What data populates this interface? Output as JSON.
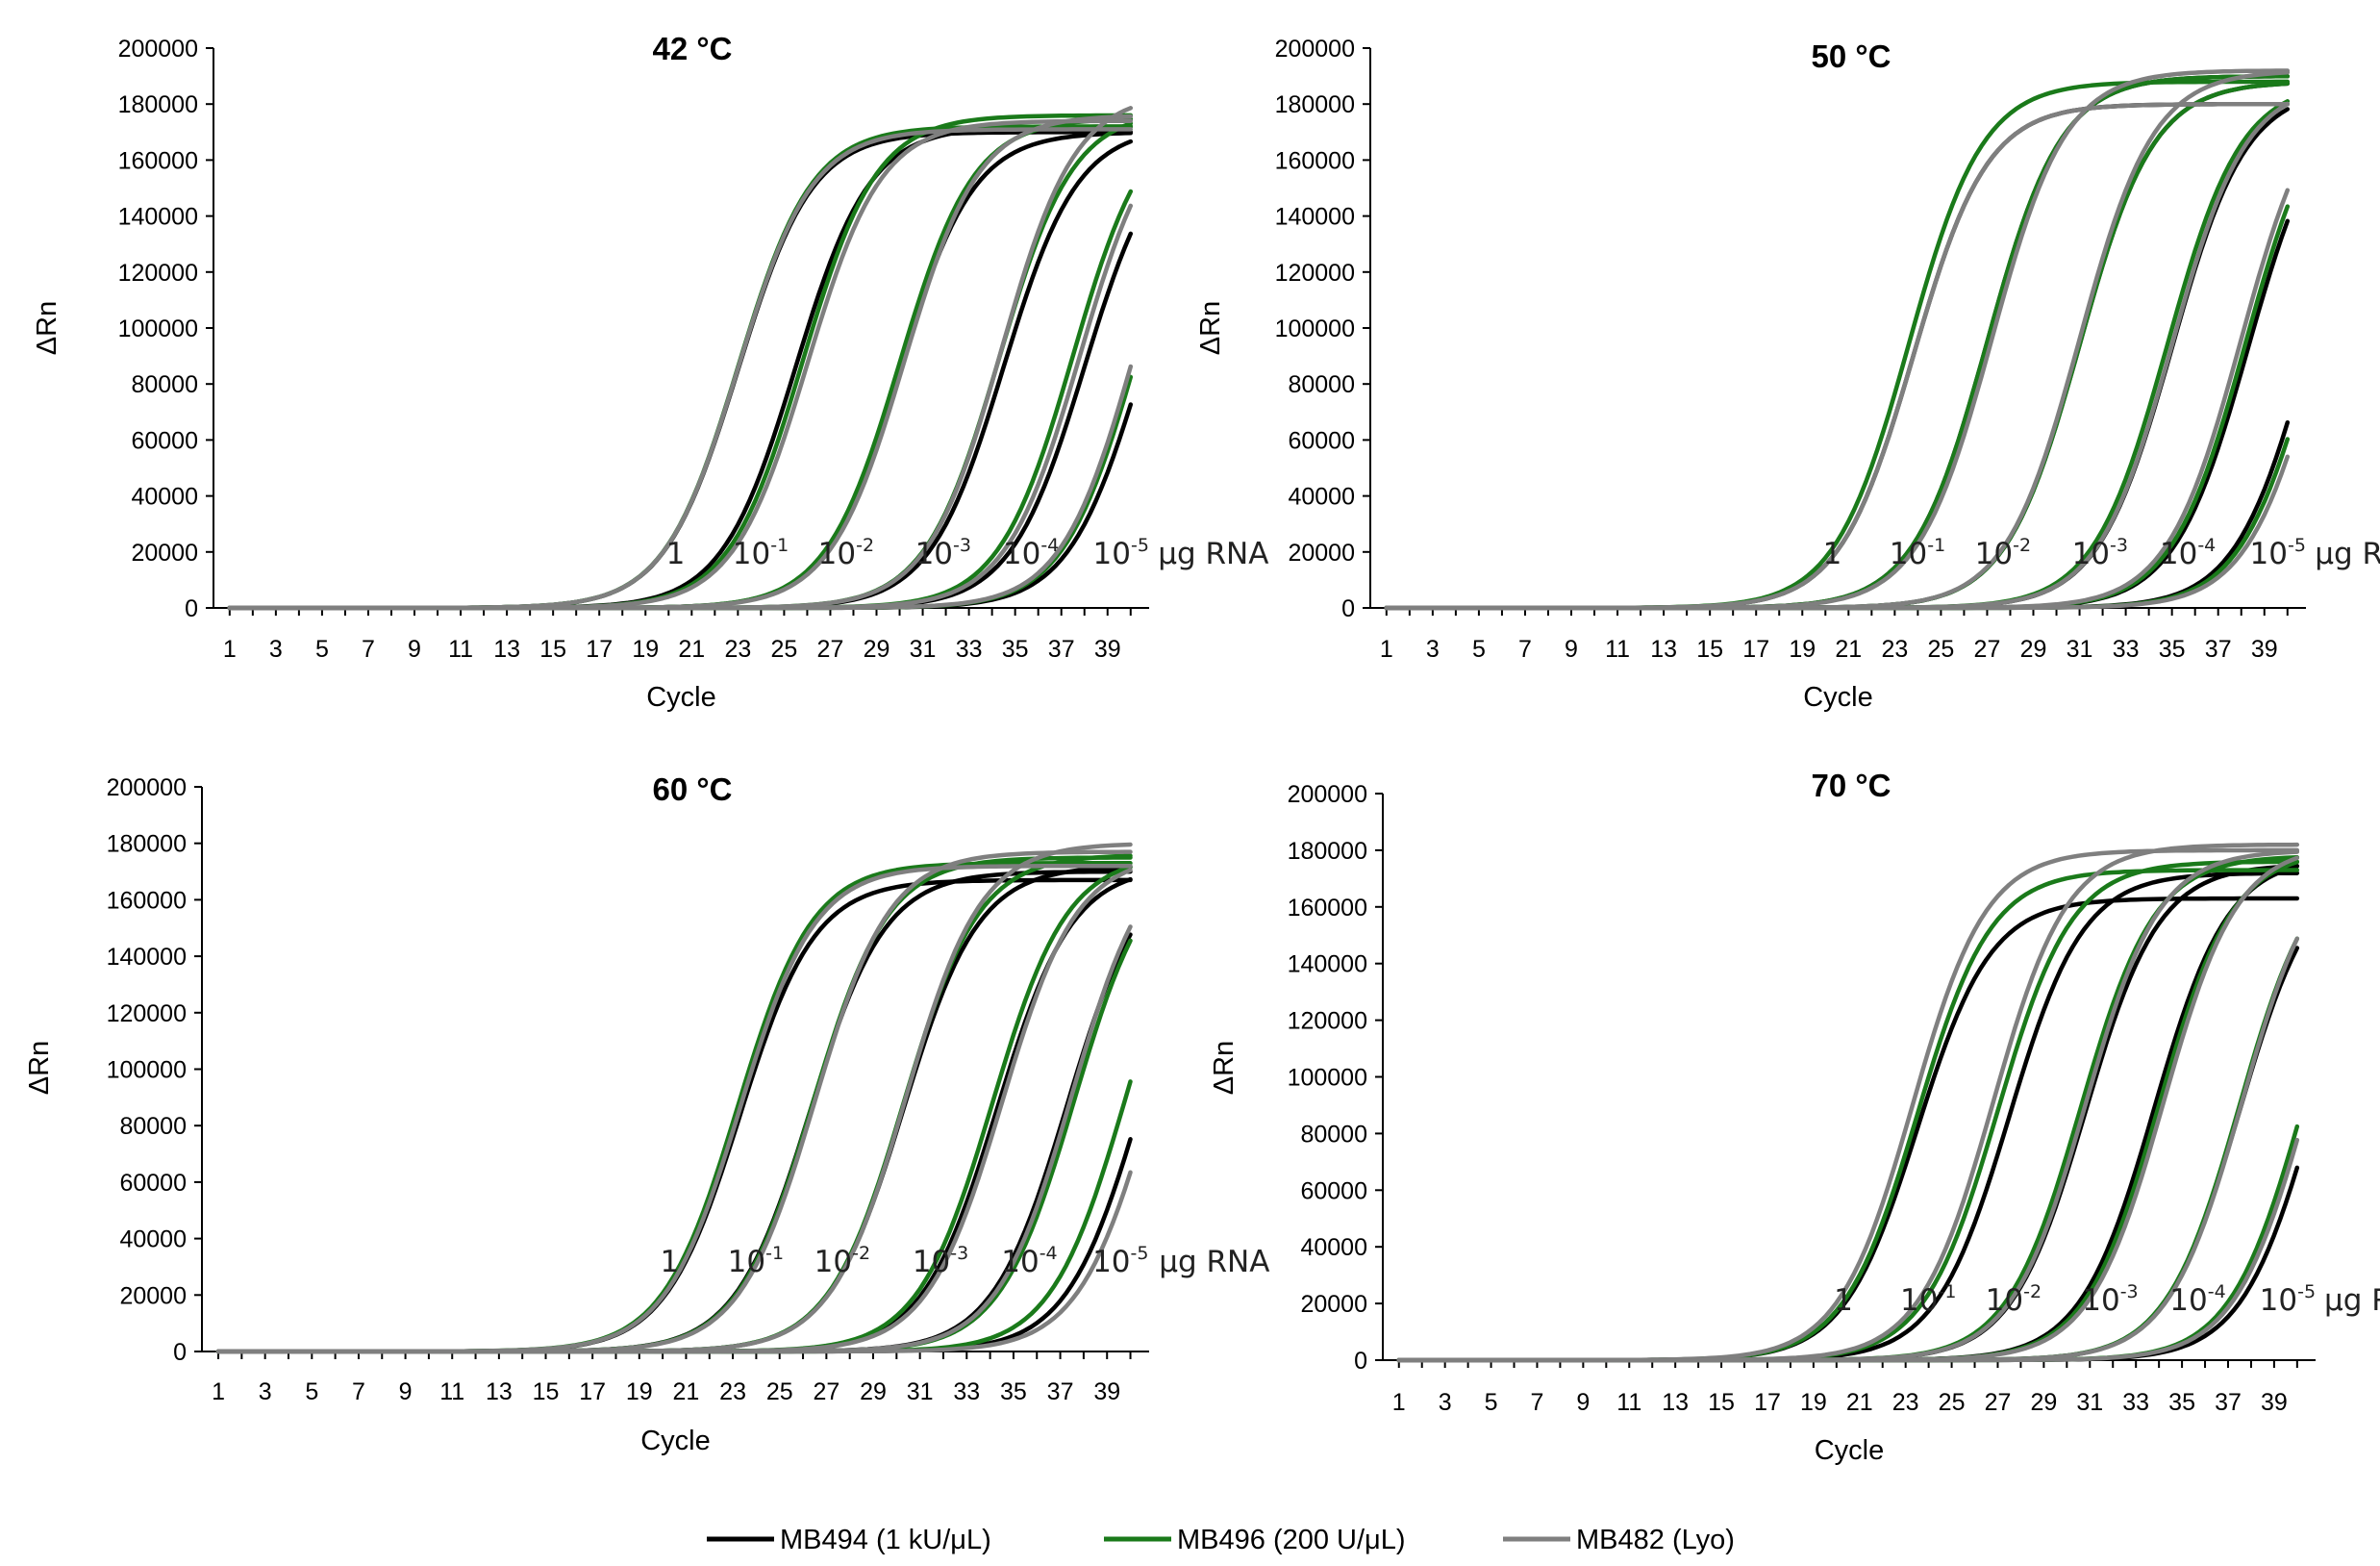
{
  "chart_data": [
    {
      "type": "line",
      "title": "42 °C",
      "xlabel": "Cycle",
      "ylabel": "ΔRn",
      "xlim": [
        1,
        40
      ],
      "ylim": [
        0,
        200000
      ],
      "x_ticks": [
        "1",
        "3",
        "5",
        "7",
        "9",
        "11",
        "13",
        "15",
        "17",
        "19",
        "21",
        "23",
        "25",
        "27",
        "29",
        "31",
        "33",
        "35",
        "37",
        "39"
      ],
      "y_ticks": [
        "0",
        "20000",
        "40000",
        "60000",
        "80000",
        "100000",
        "120000",
        "140000",
        "160000",
        "180000",
        "200000"
      ],
      "annotations": [
        "1",
        "10",
        "-1",
        "10",
        "-2",
        "10",
        "-3",
        "10",
        "-4",
        "10",
        "-5",
        "μg RNA"
      ],
      "series": [
        {
          "name": "MB494 (1 kU/μL)",
          "color": "#000000",
          "curves": [
            {
              "midpoint": 23.0,
              "plateau": 170000,
              "slope": 1.6
            },
            {
              "midpoint": 25.5,
              "plateau": 172000,
              "slope": 1.6
            },
            {
              "midpoint": 30.0,
              "plateau": 170000,
              "slope": 1.6
            },
            {
              "midpoint": 34.5,
              "plateau": 172000,
              "slope": 1.6
            },
            {
              "midpoint": 38.0,
              "plateau": 172000,
              "slope": 1.6
            },
            {
              "midpoint": 40.5,
              "plateau": 172000,
              "slope": 1.6
            }
          ]
        },
        {
          "name": "MB496 (200 U/μL)",
          "color": "#1a7a1a",
          "curves": [
            {
              "midpoint": 23.0,
              "plateau": 172000,
              "slope": 1.6
            },
            {
              "midpoint": 25.8,
              "plateau": 176000,
              "slope": 1.6
            },
            {
              "midpoint": 30.0,
              "plateau": 175000,
              "slope": 1.6
            },
            {
              "midpoint": 34.3,
              "plateau": 178000,
              "slope": 1.6
            },
            {
              "midpoint": 37.5,
              "plateau": 180000,
              "slope": 1.6
            },
            {
              "midpoint": 40.3,
              "plateau": 182000,
              "slope": 1.6
            }
          ]
        },
        {
          "name": "MB482 (Lyo)",
          "color": "#7f7f7f",
          "curves": [
            {
              "midpoint": 23.0,
              "plateau": 171000,
              "slope": 1.6
            },
            {
              "midpoint": 26.0,
              "plateau": 174000,
              "slope": 1.6
            },
            {
              "midpoint": 30.2,
              "plateau": 176000,
              "slope": 1.6
            },
            {
              "midpoint": 34.4,
              "plateau": 184000,
              "slope": 1.6
            },
            {
              "midpoint": 37.8,
              "plateau": 180000,
              "slope": 1.6
            },
            {
              "midpoint": 40.2,
              "plateau": 184000,
              "slope": 1.6
            }
          ]
        }
      ]
    },
    {
      "type": "line",
      "title": "50 °C",
      "xlabel": "Cycle",
      "ylabel": "ΔRn",
      "xlim": [
        1,
        40
      ],
      "ylim": [
        0,
        200000
      ],
      "x_ticks": [
        "1",
        "3",
        "5",
        "7",
        "9",
        "11",
        "13",
        "15",
        "17",
        "19",
        "21",
        "23",
        "25",
        "27",
        "29",
        "31",
        "33",
        "35",
        "37",
        "39"
      ],
      "y_ticks": [
        "0",
        "20000",
        "40000",
        "60000",
        "80000",
        "100000",
        "120000",
        "140000",
        "160000",
        "180000",
        "200000"
      ],
      "annotations": [
        "1",
        "10",
        "-1",
        "10",
        "-2",
        "10",
        "-3",
        "10",
        "-4",
        "10",
        "-5",
        "μg RNA"
      ],
      "series": [
        {
          "name": "MB494 (1 kU/μL)",
          "color": "#000000",
          "curves": [
            {
              "midpoint": 23.8,
              "plateau": 180000,
              "slope": 1.6
            },
            {
              "midpoint": 27.0,
              "plateau": 190000,
              "slope": 1.6
            },
            {
              "midpoint": 31.0,
              "plateau": 188000,
              "slope": 1.6
            },
            {
              "midpoint": 35.0,
              "plateau": 186000,
              "slope": 1.6
            },
            {
              "midpoint": 38.3,
              "plateau": 186000,
              "slope": 1.6
            },
            {
              "midpoint": 41.0,
              "plateau": 190000,
              "slope": 1.6
            }
          ]
        },
        {
          "name": "MB496 (200 U/μL)",
          "color": "#1a7a1a",
          "curves": [
            {
              "midpoint": 23.6,
              "plateau": 188000,
              "slope": 1.6
            },
            {
              "midpoint": 27.0,
              "plateau": 190000,
              "slope": 1.6
            },
            {
              "midpoint": 31.0,
              "plateau": 188000,
              "slope": 1.6
            },
            {
              "midpoint": 34.8,
              "plateau": 188000,
              "slope": 1.6
            },
            {
              "midpoint": 38.2,
              "plateau": 190000,
              "slope": 1.6
            },
            {
              "midpoint": 41.2,
              "plateau": 188000,
              "slope": 1.6
            }
          ]
        },
        {
          "name": "MB482 (Lyo)",
          "color": "#7f7f7f",
          "curves": [
            {
              "midpoint": 23.8,
              "plateau": 180000,
              "slope": 1.6
            },
            {
              "midpoint": 27.2,
              "plateau": 192000,
              "slope": 1.6
            },
            {
              "midpoint": 31.0,
              "plateau": 192000,
              "slope": 1.6
            },
            {
              "midpoint": 35.0,
              "plateau": 188000,
              "slope": 1.6
            },
            {
              "midpoint": 38.0,
              "plateau": 192000,
              "slope": 1.6
            },
            {
              "midpoint": 41.5,
              "plateau": 192000,
              "slope": 1.6
            }
          ]
        }
      ]
    },
    {
      "type": "line",
      "title": "60 °C",
      "xlabel": "Cycle",
      "ylabel": "ΔRn",
      "xlim": [
        1,
        40
      ],
      "ylim": [
        0,
        200000
      ],
      "x_ticks": [
        "1",
        "3",
        "5",
        "7",
        "9",
        "11",
        "13",
        "15",
        "17",
        "19",
        "21",
        "23",
        "25",
        "27",
        "29",
        "31",
        "33",
        "35",
        "37",
        "39"
      ],
      "y_ticks": [
        "0",
        "20000",
        "40000",
        "60000",
        "80000",
        "100000",
        "120000",
        "140000",
        "160000",
        "180000",
        "200000"
      ],
      "annotations": [
        "1",
        "10",
        "-1",
        "10",
        "-2",
        "10",
        "-3",
        "10",
        "-4",
        "10",
        "-5",
        "μg RNA"
      ],
      "series": [
        {
          "name": "MB494 (1 kU/μL)",
          "color": "#000000",
          "curves": [
            {
              "midpoint": 23.3,
              "plateau": 167000,
              "slope": 1.6
            },
            {
              "midpoint": 26.3,
              "plateau": 170000,
              "slope": 1.6
            },
            {
              "midpoint": 30.3,
              "plateau": 172000,
              "slope": 1.6
            },
            {
              "midpoint": 34.3,
              "plateau": 172000,
              "slope": 1.6
            },
            {
              "midpoint": 37.3,
              "plateau": 175000,
              "slope": 1.6
            },
            {
              "midpoint": 40.5,
              "plateau": 178000,
              "slope": 1.6
            }
          ]
        },
        {
          "name": "MB496 (200 U/μL)",
          "color": "#1a7a1a",
          "curves": [
            {
              "midpoint": 23.2,
              "plateau": 173000,
              "slope": 1.6
            },
            {
              "midpoint": 26.4,
              "plateau": 175000,
              "slope": 1.6
            },
            {
              "midpoint": 30.3,
              "plateau": 176000,
              "slope": 1.6
            },
            {
              "midpoint": 34.1,
              "plateau": 176000,
              "slope": 1.6
            },
            {
              "midpoint": 37.6,
              "plateau": 178000,
              "slope": 1.6
            },
            {
              "midpoint": 39.8,
              "plateau": 180000,
              "slope": 1.6
            }
          ]
        },
        {
          "name": "MB482 (Lyo)",
          "color": "#7f7f7f",
          "curves": [
            {
              "midpoint": 23.3,
              "plateau": 172000,
              "slope": 1.6
            },
            {
              "midpoint": 26.5,
              "plateau": 177000,
              "slope": 1.6
            },
            {
              "midpoint": 30.4,
              "plateau": 180000,
              "slope": 1.6
            },
            {
              "midpoint": 34.5,
              "plateau": 176000,
              "slope": 1.6
            },
            {
              "midpoint": 37.5,
              "plateau": 182000,
              "slope": 1.6
            },
            {
              "midpoint": 41.0,
              "plateau": 182000,
              "slope": 1.6
            }
          ]
        }
      ]
    },
    {
      "type": "line",
      "title": "70 °C",
      "xlabel": "Cycle",
      "ylabel": "ΔRn",
      "xlim": [
        1,
        40
      ],
      "ylim": [
        0,
        200000
      ],
      "x_ticks": [
        "1",
        "3",
        "5",
        "7",
        "9",
        "11",
        "13",
        "15",
        "17",
        "19",
        "21",
        "23",
        "25",
        "27",
        "29",
        "31",
        "33",
        "35",
        "37",
        "39"
      ],
      "y_ticks": [
        "0",
        "20000",
        "40000",
        "60000",
        "80000",
        "100000",
        "120000",
        "140000",
        "160000",
        "180000",
        "200000"
      ],
      "annotations": [
        "1",
        "10",
        "-1",
        "10",
        "-2",
        "10",
        "-3",
        "10",
        "-4",
        "10",
        "-5",
        "μg RNA"
      ],
      "series": [
        {
          "name": "MB494 (1 kU/μL)",
          "color": "#000000",
          "curves": [
            {
              "midpoint": 23.5,
              "plateau": 163000,
              "slope": 1.6
            },
            {
              "midpoint": 27.5,
              "plateau": 172000,
              "slope": 1.6
            },
            {
              "midpoint": 30.8,
              "plateau": 175000,
              "slope": 1.6
            },
            {
              "midpoint": 33.8,
              "plateau": 178000,
              "slope": 1.6
            },
            {
              "midpoint": 37.5,
              "plateau": 176000,
              "slope": 1.6
            },
            {
              "midpoint": 40.8,
              "plateau": 180000,
              "slope": 1.6
            }
          ]
        },
        {
          "name": "MB496 (200 U/μL)",
          "color": "#1a7a1a",
          "curves": [
            {
              "midpoint": 23.5,
              "plateau": 173000,
              "slope": 1.6
            },
            {
              "midpoint": 27.0,
              "plateau": 176000,
              "slope": 1.6
            },
            {
              "midpoint": 30.6,
              "plateau": 178000,
              "slope": 1.6
            },
            {
              "midpoint": 34.0,
              "plateau": 180000,
              "slope": 1.6
            },
            {
              "midpoint": 37.5,
              "plateau": 180000,
              "slope": 1.6
            },
            {
              "midpoint": 40.3,
              "plateau": 182000,
              "slope": 1.6
            }
          ]
        },
        {
          "name": "MB482 (Lyo)",
          "color": "#7f7f7f",
          "curves": [
            {
              "midpoint": 23.3,
              "plateau": 180000,
              "slope": 1.6
            },
            {
              "midpoint": 26.8,
              "plateau": 182000,
              "slope": 1.6
            },
            {
              "midpoint": 30.8,
              "plateau": 180000,
              "slope": 1.6
            },
            {
              "midpoint": 34.2,
              "plateau": 182000,
              "slope": 1.6
            },
            {
              "midpoint": 37.6,
              "plateau": 182000,
              "slope": 1.6
            },
            {
              "midpoint": 40.5,
              "plateau": 184000,
              "slope": 1.6
            }
          ]
        }
      ]
    }
  ],
  "legend": {
    "items": [
      {
        "label": "MB494 (1 kU/μL)",
        "color": "#000000"
      },
      {
        "label": "MB496 (200 U/μL)",
        "color": "#1a7a1a"
      },
      {
        "label": "MB482 (Lyo)",
        "color": "#7f7f7f"
      }
    ]
  }
}
